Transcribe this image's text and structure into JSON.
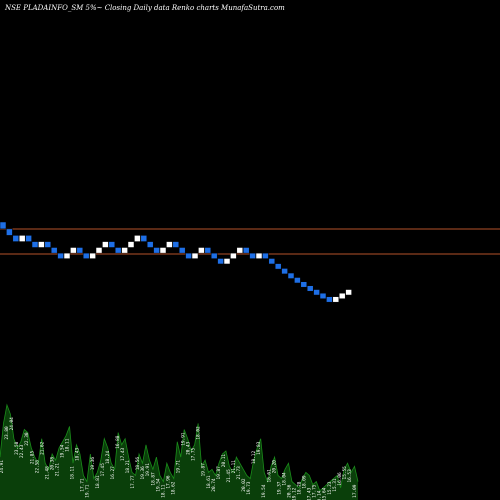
{
  "chart_data": {
    "type": "renko",
    "title": "NSE PLADAINFO_SM 5%~  Closing Daily data  Renko  charts MunafaSutra.com",
    "colors": {
      "background": "#000000",
      "up_brick": "#ffffff",
      "down_brick": "#1e6fe6",
      "reference_line": "#b5522a",
      "volume_fill": "#0a3f0a",
      "volume_line": "#1a8c1a"
    },
    "reference_lines": [
      23.3,
      21.2
    ],
    "y_range": [
      15,
      28
    ],
    "bricks": [
      {
        "dir": "down",
        "low": 24.34,
        "high": 25.56
      },
      {
        "dir": "down",
        "low": 23.18,
        "high": 24.34
      },
      {
        "dir": "down",
        "low": 22.08,
        "high": 23.18
      },
      {
        "dir": "up",
        "low": 22.08,
        "high": 23.18
      },
      {
        "dir": "down",
        "low": 22.08,
        "high": 23.18
      },
      {
        "dir": "down",
        "low": 21.03,
        "high": 22.08
      },
      {
        "dir": "up",
        "low": 21.03,
        "high": 22.08
      },
      {
        "dir": "down",
        "low": 21.03,
        "high": 22.08
      },
      {
        "dir": "down",
        "low": 20.03,
        "high": 21.03
      },
      {
        "dir": "down",
        "low": 19.08,
        "high": 20.03
      },
      {
        "dir": "up",
        "low": 19.08,
        "high": 20.03
      },
      {
        "dir": "up",
        "low": 20.03,
        "high": 21.03
      },
      {
        "dir": "down",
        "low": 20.03,
        "high": 21.03
      },
      {
        "dir": "down",
        "low": 19.08,
        "high": 20.03
      },
      {
        "dir": "up",
        "low": 19.08,
        "high": 20.03
      },
      {
        "dir": "up",
        "low": 20.03,
        "high": 21.03
      },
      {
        "dir": "up",
        "low": 21.03,
        "high": 22.08
      },
      {
        "dir": "down",
        "low": 21.03,
        "high": 22.08
      },
      {
        "dir": "down",
        "low": 20.03,
        "high": 21.03
      },
      {
        "dir": "up",
        "low": 20.03,
        "high": 21.03
      },
      {
        "dir": "up",
        "low": 21.03,
        "high": 22.08
      },
      {
        "dir": "up",
        "low": 22.08,
        "high": 23.18
      },
      {
        "dir": "down",
        "low": 22.08,
        "high": 23.18
      },
      {
        "dir": "down",
        "low": 21.03,
        "high": 22.08
      },
      {
        "dir": "down",
        "low": 20.03,
        "high": 21.03
      },
      {
        "dir": "up",
        "low": 20.03,
        "high": 21.03
      },
      {
        "dir": "up",
        "low": 21.03,
        "high": 22.08
      },
      {
        "dir": "down",
        "low": 21.03,
        "high": 22.08
      },
      {
        "dir": "down",
        "low": 20.03,
        "high": 21.03
      },
      {
        "dir": "down",
        "low": 19.08,
        "high": 20.03
      },
      {
        "dir": "up",
        "low": 19.08,
        "high": 20.03
      },
      {
        "dir": "up",
        "low": 20.03,
        "high": 21.03
      },
      {
        "dir": "down",
        "low": 20.03,
        "high": 21.03
      },
      {
        "dir": "down",
        "low": 19.08,
        "high": 20.03
      },
      {
        "dir": "down",
        "low": 18.17,
        "high": 19.08
      },
      {
        "dir": "up",
        "low": 18.17,
        "high": 19.08
      },
      {
        "dir": "up",
        "low": 19.08,
        "high": 20.03
      },
      {
        "dir": "up",
        "low": 20.03,
        "high": 21.03
      },
      {
        "dir": "down",
        "low": 20.03,
        "high": 21.03
      },
      {
        "dir": "down",
        "low": 19.08,
        "high": 20.03
      },
      {
        "dir": "up",
        "low": 19.08,
        "high": 20.03
      },
      {
        "dir": "down",
        "low": 19.08,
        "high": 20.03
      },
      {
        "dir": "down",
        "low": 18.17,
        "high": 19.08
      },
      {
        "dir": "down",
        "low": 17.31,
        "high": 18.17
      },
      {
        "dir": "down",
        "low": 16.49,
        "high": 17.31
      },
      {
        "dir": "down",
        "low": 15.7,
        "high": 16.49
      },
      {
        "dir": "down",
        "low": 14.95,
        "high": 15.7
      },
      {
        "dir": "down",
        "low": 14.24,
        "high": 14.95
      },
      {
        "dir": "down",
        "low": 13.56,
        "high": 14.24
      },
      {
        "dir": "down",
        "low": 12.91,
        "high": 13.56
      },
      {
        "dir": "down",
        "low": 12.29,
        "high": 12.91
      },
      {
        "dir": "down",
        "low": 11.7,
        "high": 12.29
      },
      {
        "dir": "up",
        "low": 11.7,
        "high": 12.29
      },
      {
        "dir": "up",
        "low": 12.29,
        "high": 12.91
      },
      {
        "dir": "up",
        "low": 12.91,
        "high": 13.56
      }
    ],
    "volume_labels": [
      "24.91",
      "23.80",
      "24.04",
      "23.58",
      "22.43",
      "22.30",
      "21.85",
      "22.58",
      "21.62",
      "21.48",
      "20.38",
      "21.21",
      "19.54",
      "18.11",
      "18.11",
      "18.43",
      "17.71",
      "19.71",
      "19.36",
      "18.81",
      "17.45",
      "18.24",
      "16.27",
      "16.88",
      "17.43",
      "18.21",
      "17.77",
      "18.56",
      "19.36",
      "19.91",
      "18.87",
      "19.54",
      "18.11",
      "17.96",
      "18.62",
      "19.71",
      "19.91",
      "20.43",
      "17.75",
      "18.02",
      "19.87",
      "18.61",
      "20.74",
      "19.87",
      "20.11",
      "21.45",
      "21.11",
      "21.73",
      "20.02",
      "19.73",
      "18.12",
      "19.83",
      "19.54",
      "18.61",
      "20.20",
      "19.37",
      "18.04",
      "20.56",
      "19.12",
      "18.28",
      "18.09",
      "17.43",
      "17.75",
      "16.14",
      "15.64",
      "15.23",
      "15.31",
      "16.06",
      "15.55",
      "16.53",
      "17.09"
    ],
    "volume_series": [
      14,
      25,
      31,
      28,
      20,
      17,
      19,
      23,
      22,
      17,
      14,
      12,
      20,
      12,
      10,
      15,
      13,
      17,
      19,
      21,
      24,
      12,
      18,
      15,
      8,
      6,
      15,
      7,
      9,
      13,
      20,
      17,
      12,
      10,
      22,
      18,
      20,
      14,
      9,
      8,
      15,
      12,
      18,
      13,
      10,
      14,
      8,
      6,
      12,
      9,
      7,
      19,
      14,
      23,
      20,
      16,
      18,
      25,
      11,
      13,
      9,
      10,
      8,
      12,
      15,
      16,
      11,
      9,
      14,
      12,
      10,
      8,
      7,
      13,
      17,
      20,
      9,
      6,
      11,
      14,
      8,
      7,
      10,
      12,
      6,
      5,
      4,
      7,
      9,
      8,
      5,
      6,
      3,
      4,
      5,
      6,
      7,
      8,
      4,
      10,
      12,
      9,
      11,
      6
    ]
  }
}
